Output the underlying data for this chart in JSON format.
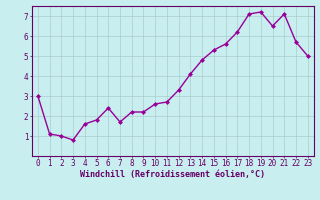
{
  "x": [
    0,
    1,
    2,
    3,
    4,
    5,
    6,
    7,
    8,
    9,
    10,
    11,
    12,
    13,
    14,
    15,
    16,
    17,
    18,
    19,
    20,
    21,
    22,
    23
  ],
  "y": [
    3.0,
    1.1,
    1.0,
    0.8,
    1.6,
    1.8,
    2.4,
    1.7,
    2.2,
    2.2,
    2.6,
    2.7,
    3.3,
    4.1,
    4.8,
    5.3,
    5.6,
    6.2,
    7.1,
    7.2,
    6.5,
    7.1,
    5.7,
    5.0
  ],
  "line_color": "#990099",
  "marker": "D",
  "marker_size": 2,
  "line_width": 1.0,
  "xlabel": "Windchill (Refroidissement éolien,°C)",
  "xlabel_fontsize": 6,
  "ylim": [
    0,
    7.5
  ],
  "xlim": [
    -0.5,
    23.5
  ],
  "yticks": [
    1,
    2,
    3,
    4,
    5,
    6,
    7
  ],
  "xticks": [
    0,
    1,
    2,
    3,
    4,
    5,
    6,
    7,
    8,
    9,
    10,
    11,
    12,
    13,
    14,
    15,
    16,
    17,
    18,
    19,
    20,
    21,
    22,
    23
  ],
  "tick_fontsize": 5.5,
  "bg_color": "#c8eef0",
  "grid_color": "#aacccc",
  "spine_color": "#660066",
  "xlabel_color": "#660066",
  "tick_label_color": "#660066"
}
